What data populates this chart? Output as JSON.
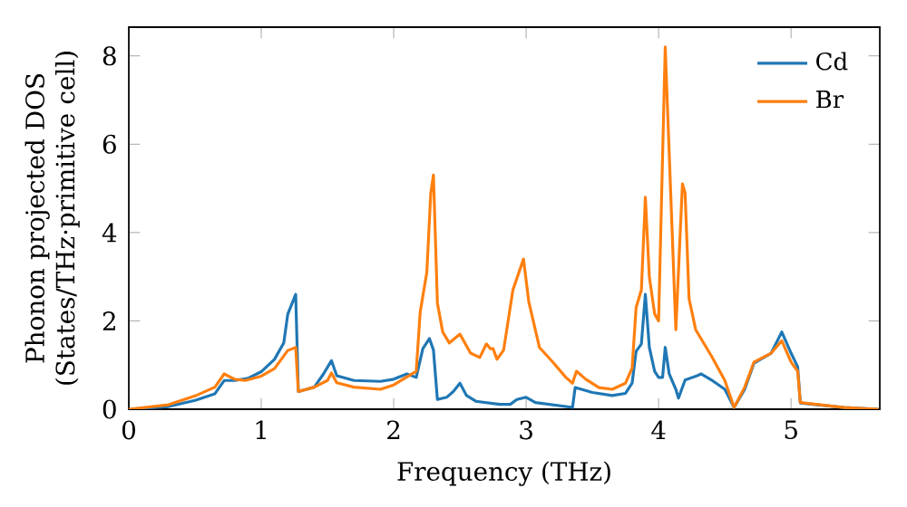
{
  "chart_data": {
    "type": "line",
    "xlabel": "Frequency (THz)",
    "ylabel": "Phonon projected DOS (States/THz·primitive cell)",
    "xlim": [
      0,
      5.67
    ],
    "ylim": [
      0,
      8.65
    ],
    "xticks": [
      0,
      1,
      2,
      3,
      4,
      5
    ],
    "yticks": [
      0,
      2,
      4,
      6,
      8
    ],
    "grid": false,
    "legend": "top right",
    "line_style": "solid",
    "marker": "none",
    "series": [
      {
        "name": "Cd",
        "color": "#1f77b4",
        "x": [
          0,
          0.3,
          0.5,
          0.65,
          0.72,
          0.8,
          0.9,
          1.0,
          1.1,
          1.17,
          1.2,
          1.26,
          1.28,
          1.4,
          1.47,
          1.53,
          1.57,
          1.7,
          1.9,
          2.0,
          2.1,
          2.17,
          2.22,
          2.27,
          2.3,
          2.33,
          2.4,
          2.45,
          2.5,
          2.55,
          2.62,
          2.8,
          2.88,
          2.93,
          3.0,
          3.07,
          3.35,
          3.37,
          3.5,
          3.65,
          3.75,
          3.8,
          3.83,
          3.87,
          3.9,
          3.93,
          3.97,
          4.0,
          4.03,
          4.05,
          4.08,
          4.13,
          4.15,
          4.2,
          4.3,
          4.32,
          4.4,
          4.5,
          4.57,
          4.65,
          4.72,
          4.85,
          4.93,
          5.0,
          5.05,
          5.07,
          5.4,
          5.66
        ],
        "values": [
          0,
          0.06,
          0.2,
          0.35,
          0.65,
          0.65,
          0.7,
          0.85,
          1.13,
          1.5,
          2.15,
          2.6,
          0.4,
          0.5,
          0.8,
          1.1,
          0.76,
          0.65,
          0.63,
          0.68,
          0.8,
          0.72,
          1.37,
          1.6,
          1.34,
          0.22,
          0.27,
          0.4,
          0.59,
          0.31,
          0.18,
          0.11,
          0.11,
          0.22,
          0.27,
          0.15,
          0.04,
          0.49,
          0.38,
          0.31,
          0.36,
          0.59,
          1.31,
          1.48,
          2.6,
          1.4,
          0.86,
          0.72,
          0.72,
          1.4,
          0.8,
          0.45,
          0.25,
          0.66,
          0.77,
          0.8,
          0.66,
          0.45,
          0.04,
          0.45,
          1.04,
          1.27,
          1.75,
          1.27,
          0.96,
          0.14,
          0.04,
          0
        ]
      },
      {
        "name": "Br",
        "color": "#ff7f0e",
        "x": [
          0,
          0.3,
          0.5,
          0.65,
          0.72,
          0.8,
          0.88,
          1.0,
          1.1,
          1.2,
          1.26,
          1.28,
          1.4,
          1.5,
          1.53,
          1.57,
          1.7,
          1.9,
          2.0,
          2.17,
          2.2,
          2.25,
          2.28,
          2.3,
          2.33,
          2.37,
          2.42,
          2.5,
          2.58,
          2.65,
          2.7,
          2.73,
          2.75,
          2.78,
          2.83,
          2.9,
          2.98,
          3.02,
          3.1,
          3.2,
          3.3,
          3.35,
          3.38,
          3.45,
          3.55,
          3.65,
          3.75,
          3.8,
          3.83,
          3.87,
          3.9,
          3.93,
          3.97,
          4.0,
          4.05,
          4.13,
          4.18,
          4.2,
          4.23,
          4.28,
          4.4,
          4.5,
          4.57,
          4.65,
          4.72,
          4.85,
          4.93,
          5.0,
          5.05,
          5.07,
          5.4,
          5.66
        ],
        "values": [
          0,
          0.1,
          0.3,
          0.5,
          0.8,
          0.68,
          0.65,
          0.75,
          0.92,
          1.33,
          1.4,
          0.4,
          0.5,
          0.65,
          0.82,
          0.6,
          0.5,
          0.45,
          0.55,
          0.86,
          2.2,
          3.1,
          4.9,
          5.3,
          2.4,
          1.75,
          1.5,
          1.7,
          1.27,
          1.17,
          1.48,
          1.37,
          1.37,
          1.13,
          1.34,
          2.7,
          3.4,
          2.43,
          1.4,
          1.07,
          0.72,
          0.59,
          0.86,
          0.68,
          0.49,
          0.45,
          0.59,
          0.93,
          2.3,
          2.7,
          4.8,
          3.0,
          2.16,
          2.0,
          8.2,
          1.8,
          5.1,
          4.9,
          2.5,
          1.8,
          1.2,
          0.65,
          0.04,
          0.5,
          1.07,
          1.27,
          1.55,
          1.07,
          0.86,
          0.15,
          0.04,
          0
        ]
      }
    ]
  }
}
